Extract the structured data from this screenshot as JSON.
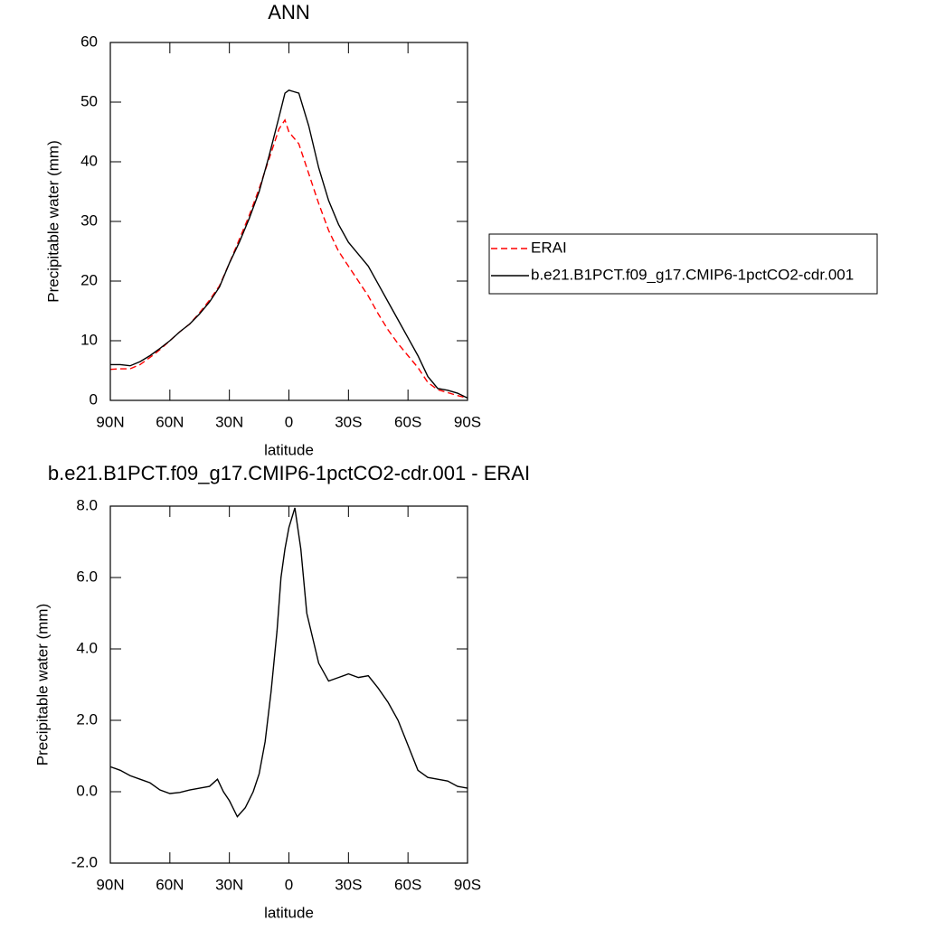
{
  "chart_data": [
    {
      "type": "line",
      "title": "ANN",
      "xlabel": "latitude",
      "ylabel": "Precipitable water (mm)",
      "x": [
        90,
        85,
        80,
        75,
        70,
        65,
        60,
        55,
        50,
        45,
        40,
        35,
        30,
        25,
        20,
        15,
        10,
        5,
        2,
        0,
        -2,
        -5,
        -10,
        -15,
        -20,
        -25,
        -30,
        -35,
        -40,
        -45,
        -50,
        -55,
        -60,
        -65,
        -70,
        -75,
        -80,
        -85,
        -90
      ],
      "series": [
        {
          "name": "ERAI",
          "color": "#ff0000",
          "dash": true,
          "values": [
            5.2,
            5.3,
            5.3,
            6,
            7.2,
            8.5,
            10,
            11.5,
            12.8,
            14.7,
            16.8,
            19.2,
            23,
            27,
            31,
            35.5,
            40.5,
            45.5,
            47,
            45,
            44.2,
            43,
            38,
            33,
            28.5,
            25,
            22.5,
            20,
            17.5,
            14.5,
            11.8,
            9.5,
            7.5,
            5.5,
            3,
            1.8,
            1.3,
            0.8,
            0.4
          ]
        },
        {
          "name": "b.e21.B1PCT.f09_g17.CMIP6-1pctCO2-cdr.001",
          "color": "#000000",
          "dash": false,
          "values": [
            6.0,
            6.0,
            5.8,
            6.5,
            7.5,
            8.7,
            10,
            11.5,
            12.8,
            14.5,
            16.5,
            19,
            23,
            26.5,
            30.5,
            35,
            41,
            47.5,
            51.5,
            52,
            51.8,
            51.5,
            46,
            39,
            33.5,
            29.5,
            26.5,
            24.5,
            22.5,
            19.5,
            16.5,
            13.5,
            10.5,
            7.5,
            4,
            2,
            1.7,
            1.2,
            0.4
          ]
        }
      ],
      "xlim": [
        90,
        -90
      ],
      "xticks": [
        {
          "value": 90,
          "label": "90N"
        },
        {
          "value": 60,
          "label": "60N"
        },
        {
          "value": 30,
          "label": "30N"
        },
        0,
        {
          "value": -30,
          "label": "30S"
        },
        {
          "value": -60,
          "label": "60S"
        },
        {
          "value": -90,
          "label": "90S"
        }
      ],
      "ylim": [
        0,
        60
      ],
      "yticks": [
        0,
        10,
        20,
        30,
        40,
        50,
        60
      ],
      "legend": "right"
    },
    {
      "type": "line",
      "title": "b.e21.B1PCT.f09_g17.CMIP6-1pctCO2-cdr.001 - ERAI",
      "xlabel": "latitude",
      "ylabel": "Precipitable water (mm)",
      "x": [
        90,
        85,
        80,
        75,
        70,
        65,
        60,
        55,
        50,
        45,
        40,
        36,
        33,
        30,
        26,
        22,
        18,
        15,
        12,
        9,
        6,
        4,
        2,
        0,
        -3,
        -6,
        -9,
        -12,
        -15,
        -20,
        -25,
        -30,
        -35,
        -40,
        -45,
        -50,
        -55,
        -60,
        -65,
        -70,
        -75,
        -80,
        -85,
        -90
      ],
      "series": [
        {
          "color": "#000000",
          "dash": false,
          "values": [
            0.7,
            0.6,
            0.45,
            0.35,
            0.25,
            0.05,
            -0.05,
            -0.02,
            0.05,
            0.1,
            0.15,
            0.35,
            0.0,
            -0.25,
            -0.7,
            -0.45,
            0.0,
            0.5,
            1.4,
            2.8,
            4.5,
            6.0,
            6.8,
            7.4,
            7.95,
            6.8,
            5.0,
            4.3,
            3.6,
            3.1,
            3.2,
            3.3,
            3.2,
            3.25,
            2.9,
            2.5,
            2.0,
            1.3,
            0.6,
            0.4,
            0.35,
            0.3,
            0.15,
            0.1
          ]
        }
      ],
      "xlim": [
        90,
        -90
      ],
      "xticks": [
        {
          "value": 90,
          "label": "90N"
        },
        {
          "value": 60,
          "label": "60N"
        },
        {
          "value": 30,
          "label": "30N"
        },
        0,
        {
          "value": -30,
          "label": "30S"
        },
        {
          "value": -60,
          "label": "60S"
        },
        {
          "value": -90,
          "label": "90S"
        }
      ],
      "ylim": [
        -2,
        8
      ],
      "yticks": [
        {
          "value": -2,
          "label": "-2.0"
        },
        {
          "value": 0,
          "label": "0.0"
        },
        {
          "value": 2,
          "label": "2.0"
        },
        {
          "value": 4,
          "label": "4.0"
        },
        {
          "value": 6,
          "label": "6.0"
        },
        {
          "value": 8,
          "label": "8.0"
        }
      ]
    }
  ]
}
